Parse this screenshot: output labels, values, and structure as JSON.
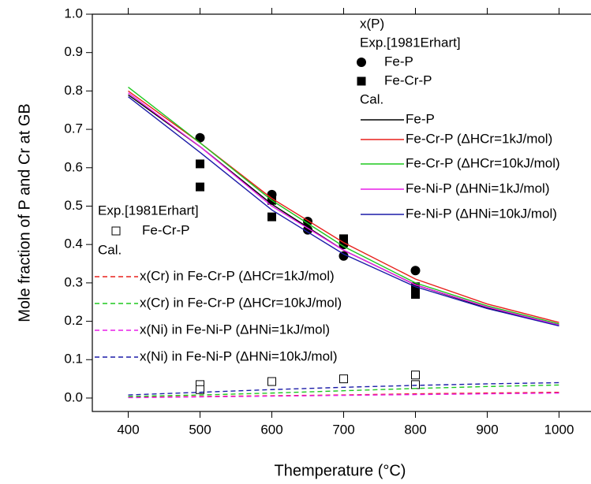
{
  "chart_data": {
    "type": "scatter-line",
    "x_label": "Themperature (°C)",
    "y_label": "Mole fraction of P and Cr at GB",
    "xlim": [
      350,
      1050
    ],
    "xticks": [
      400,
      500,
      600,
      700,
      800,
      900,
      1000
    ],
    "ylim": [
      -0.035,
      1.0
    ],
    "yticks": [
      {
        "value": 0,
        "label": "0.0"
      },
      0.1,
      0.2,
      0.3,
      0.4,
      0.5,
      0.6,
      0.7,
      0.8,
      0.9,
      {
        "value": 1,
        "label": "1.0"
      }
    ],
    "legend_headings": [
      "x(P)",
      "Exp.[1981Erhart]",
      "Cal.",
      "Exp.[1981Erhart]",
      "Cal."
    ],
    "series": [
      {
        "name": "Fe-P",
        "color": "#000000",
        "style": "filled-circle",
        "x": [
          500,
          600,
          650,
          650,
          700,
          700,
          800
        ],
        "values": [
          0.678,
          0.53,
          0.46,
          0.438,
          0.37,
          0.4,
          0.332
        ]
      },
      {
        "name": "Fe-Cr-P",
        "color": "#000000",
        "style": "filled-square",
        "x": [
          500,
          500,
          600,
          600,
          700,
          700,
          800,
          800
        ],
        "values": [
          0.61,
          0.55,
          0.515,
          0.472,
          0.415,
          0.405,
          0.29,
          0.27
        ]
      },
      {
        "name": "Fe-P",
        "color": "#000000",
        "style": "line",
        "x": [
          400,
          500,
          600,
          700,
          800,
          900,
          1000
        ],
        "values": [
          0.79,
          0.655,
          0.505,
          0.385,
          0.295,
          0.235,
          0.19
        ]
      },
      {
        "name": "Fe-Cr-P (ΔHCr=1kJ/mol)",
        "color": "#e8201c",
        "style": "line",
        "x": [
          400,
          500,
          600,
          700,
          800,
          900,
          1000
        ],
        "values": [
          0.8,
          0.665,
          0.52,
          0.405,
          0.31,
          0.245,
          0.197
        ]
      },
      {
        "name": "Fe-Cr-P (ΔHCr=10kJ/mol)",
        "color": "#1ec81e",
        "style": "line",
        "x": [
          400,
          500,
          600,
          700,
          800,
          900,
          1000
        ],
        "values": [
          0.81,
          0.665,
          0.515,
          0.395,
          0.3,
          0.24,
          0.193
        ]
      },
      {
        "name": "Fe-Ni-P (ΔHNi=1kJ/mol)",
        "color": "#e81ee8",
        "style": "line",
        "x": [
          400,
          500,
          600,
          700,
          800,
          900,
          1000
        ],
        "values": [
          0.795,
          0.655,
          0.5,
          0.385,
          0.295,
          0.237,
          0.19
        ]
      },
      {
        "name": "Fe-Ni-P (ΔHNi=10kJ/mol)",
        "color": "#1c1ca8",
        "style": "line",
        "x": [
          400,
          500,
          600,
          700,
          800,
          900,
          1000
        ],
        "values": [
          0.785,
          0.64,
          0.49,
          0.375,
          0.29,
          0.233,
          0.188
        ]
      },
      {
        "name": "Fe-Cr-P",
        "color": "#000000",
        "style": "open-square",
        "x": [
          500,
          500,
          600,
          700,
          800,
          800
        ],
        "values": [
          0.035,
          0.022,
          0.043,
          0.05,
          0.06,
          0.035
        ]
      },
      {
        "name": "x(Cr) in Fe-Cr-P (ΔHCr=1kJ/mol)",
        "color": "#e8201c",
        "style": "dash",
        "x": [
          400,
          500,
          600,
          700,
          800,
          900,
          1000
        ],
        "values": [
          0.002,
          0.004,
          0.006,
          0.008,
          0.011,
          0.013,
          0.015
        ]
      },
      {
        "name": "x(Cr) in Fe-Cr-P (ΔHCr=10kJ/mol)",
        "color": "#1ec81e",
        "style": "dash",
        "x": [
          400,
          500,
          600,
          700,
          800,
          900,
          1000
        ],
        "values": [
          0.004,
          0.008,
          0.013,
          0.019,
          0.025,
          0.03,
          0.034
        ]
      },
      {
        "name": "x(Ni) in Fe-Ni-P (ΔHNi=1kJ/mol)",
        "color": "#e81ee8",
        "style": "dash",
        "x": [
          400,
          500,
          600,
          700,
          800,
          900,
          1000
        ],
        "values": [
          0.001,
          0.003,
          0.005,
          0.007,
          0.009,
          0.011,
          0.013
        ]
      },
      {
        "name": "x(Ni) in Fe-Ni-P (ΔHNi=10kJ/mol)",
        "color": "#1c1ca8",
        "style": "dash",
        "x": [
          400,
          500,
          600,
          700,
          800,
          900,
          1000
        ],
        "values": [
          0.008,
          0.015,
          0.022,
          0.028,
          0.033,
          0.037,
          0.04
        ]
      }
    ]
  }
}
